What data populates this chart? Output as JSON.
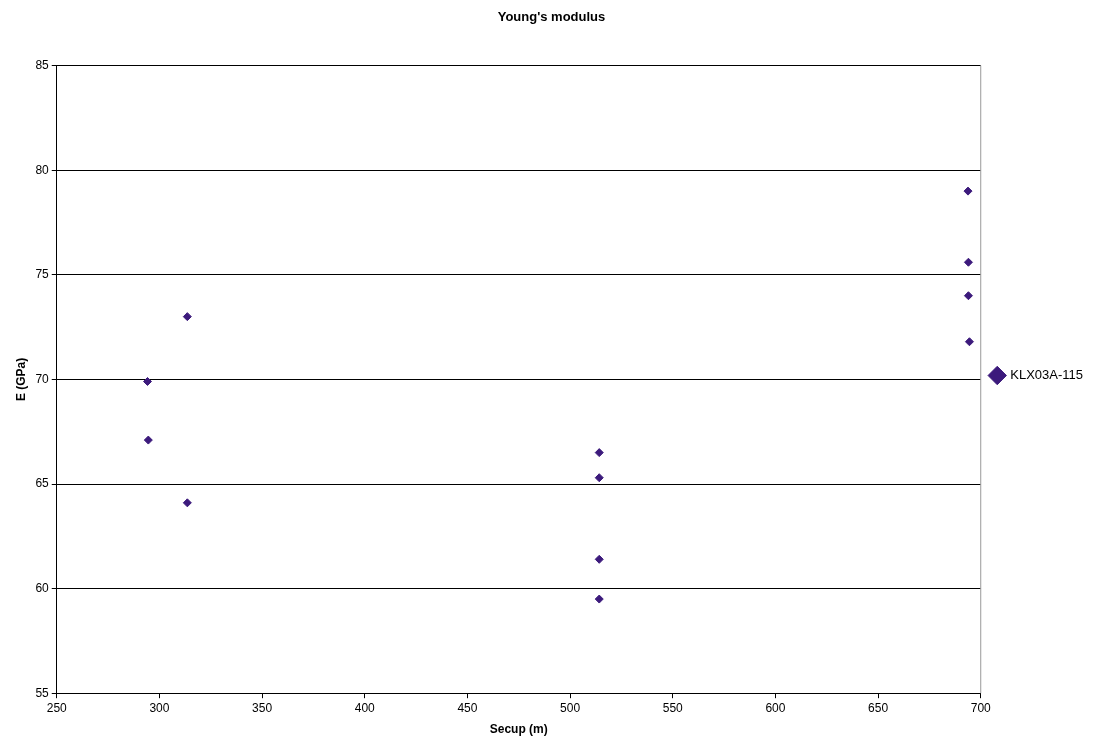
{
  "chart_data": {
    "type": "scatter",
    "title": "Young's modulus",
    "xlabel": "Secup (m)",
    "ylabel": "E (GPa)",
    "series": [
      {
        "name": "KLX03A-115",
        "color": "#3c1a7c",
        "x": [
          294.2,
          294.6,
          313.6,
          313.6,
          514.2,
          514.2,
          514.2,
          514.2,
          693.8,
          694,
          694,
          694.5
        ],
        "values": [
          69.9,
          67.1,
          73.0,
          64.1,
          66.5,
          65.3,
          61.4,
          59.5,
          79.0,
          75.6,
          74.0,
          71.8
        ]
      }
    ],
    "xlim": [
      250,
      700
    ],
    "xticks": [
      250,
      300,
      350,
      400,
      450,
      500,
      550,
      600,
      650,
      700
    ],
    "ylim": [
      55,
      85
    ],
    "yticks": [
      55,
      60,
      65,
      70,
      75,
      80,
      85
    ],
    "grid": "y",
    "legend": "right",
    "marker": "diamond"
  }
}
